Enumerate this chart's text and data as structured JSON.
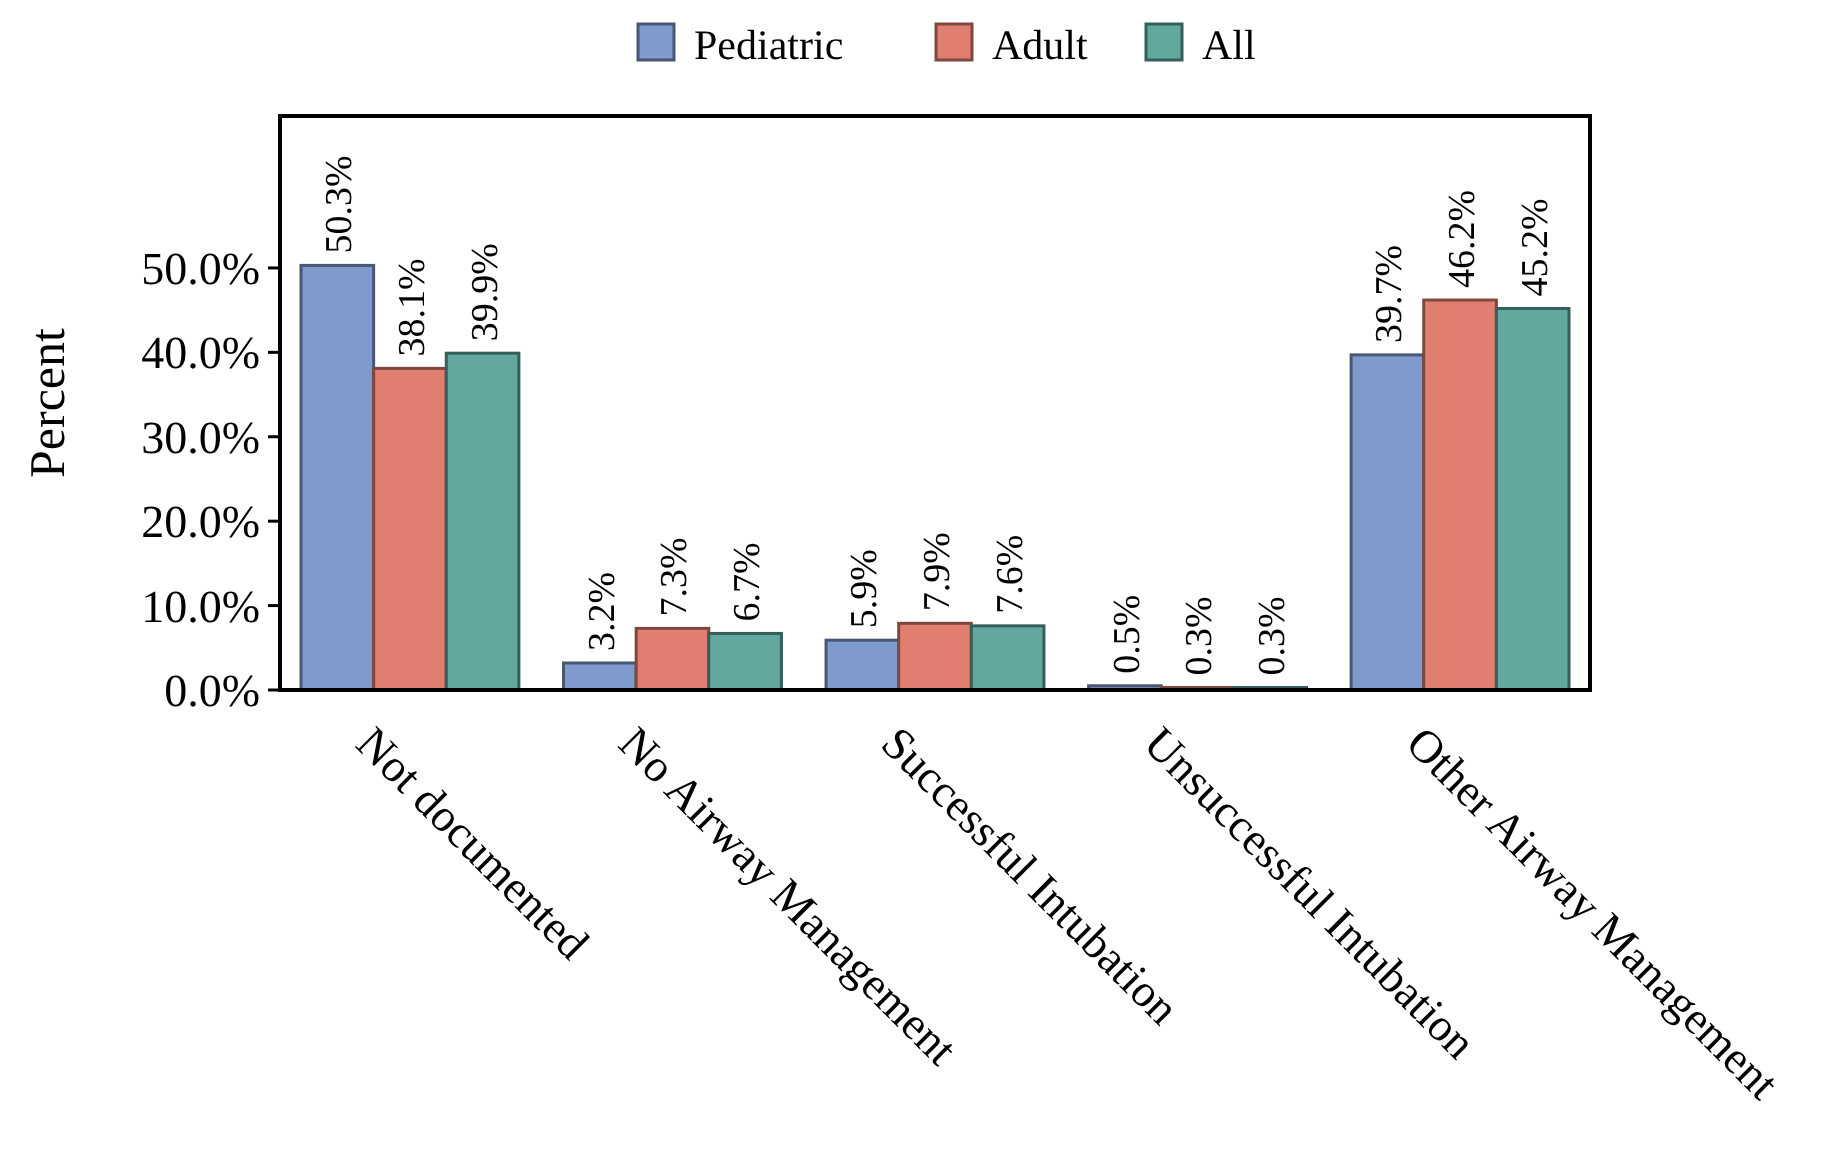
{
  "chart_data": {
    "type": "bar",
    "ylabel": "Percent",
    "categories": [
      "Not documented",
      "No Airway Management",
      "Successful Intubation",
      "Unsuccessful Intubation",
      "Other Airway Management"
    ],
    "series": [
      {
        "name": "Pediatric",
        "color": "#7f9acd",
        "values": [
          50.3,
          3.2,
          5.9,
          0.5,
          39.7
        ],
        "value_labels": [
          "50.3%",
          "3.2%",
          "5.9%",
          "0.5%",
          "39.7%"
        ]
      },
      {
        "name": "Adult",
        "color": "#e07f70",
        "values": [
          38.1,
          7.3,
          7.9,
          0.3,
          46.2
        ],
        "value_labels": [
          "38.1%",
          "7.3%",
          "7.9%",
          "0.3%",
          "46.2%"
        ]
      },
      {
        "name": "All",
        "color": "#62a89e",
        "values": [
          39.9,
          6.7,
          7.6,
          0.3,
          45.2
        ],
        "value_labels": [
          "39.9%",
          "6.7%",
          "7.6%",
          "0.3%",
          "45.2%"
        ]
      }
    ],
    "ylim": [
      0,
      68
    ],
    "yticks": [
      {
        "value": 0,
        "label": "0.0%"
      },
      {
        "value": 10,
        "label": "10.0%"
      },
      {
        "value": 20,
        "label": "20.0%"
      },
      {
        "value": 30,
        "label": "30.0%"
      },
      {
        "value": 40,
        "label": "40.0%"
      },
      {
        "value": 50,
        "label": "50.0%"
      }
    ],
    "grid": false,
    "legend": "top"
  }
}
